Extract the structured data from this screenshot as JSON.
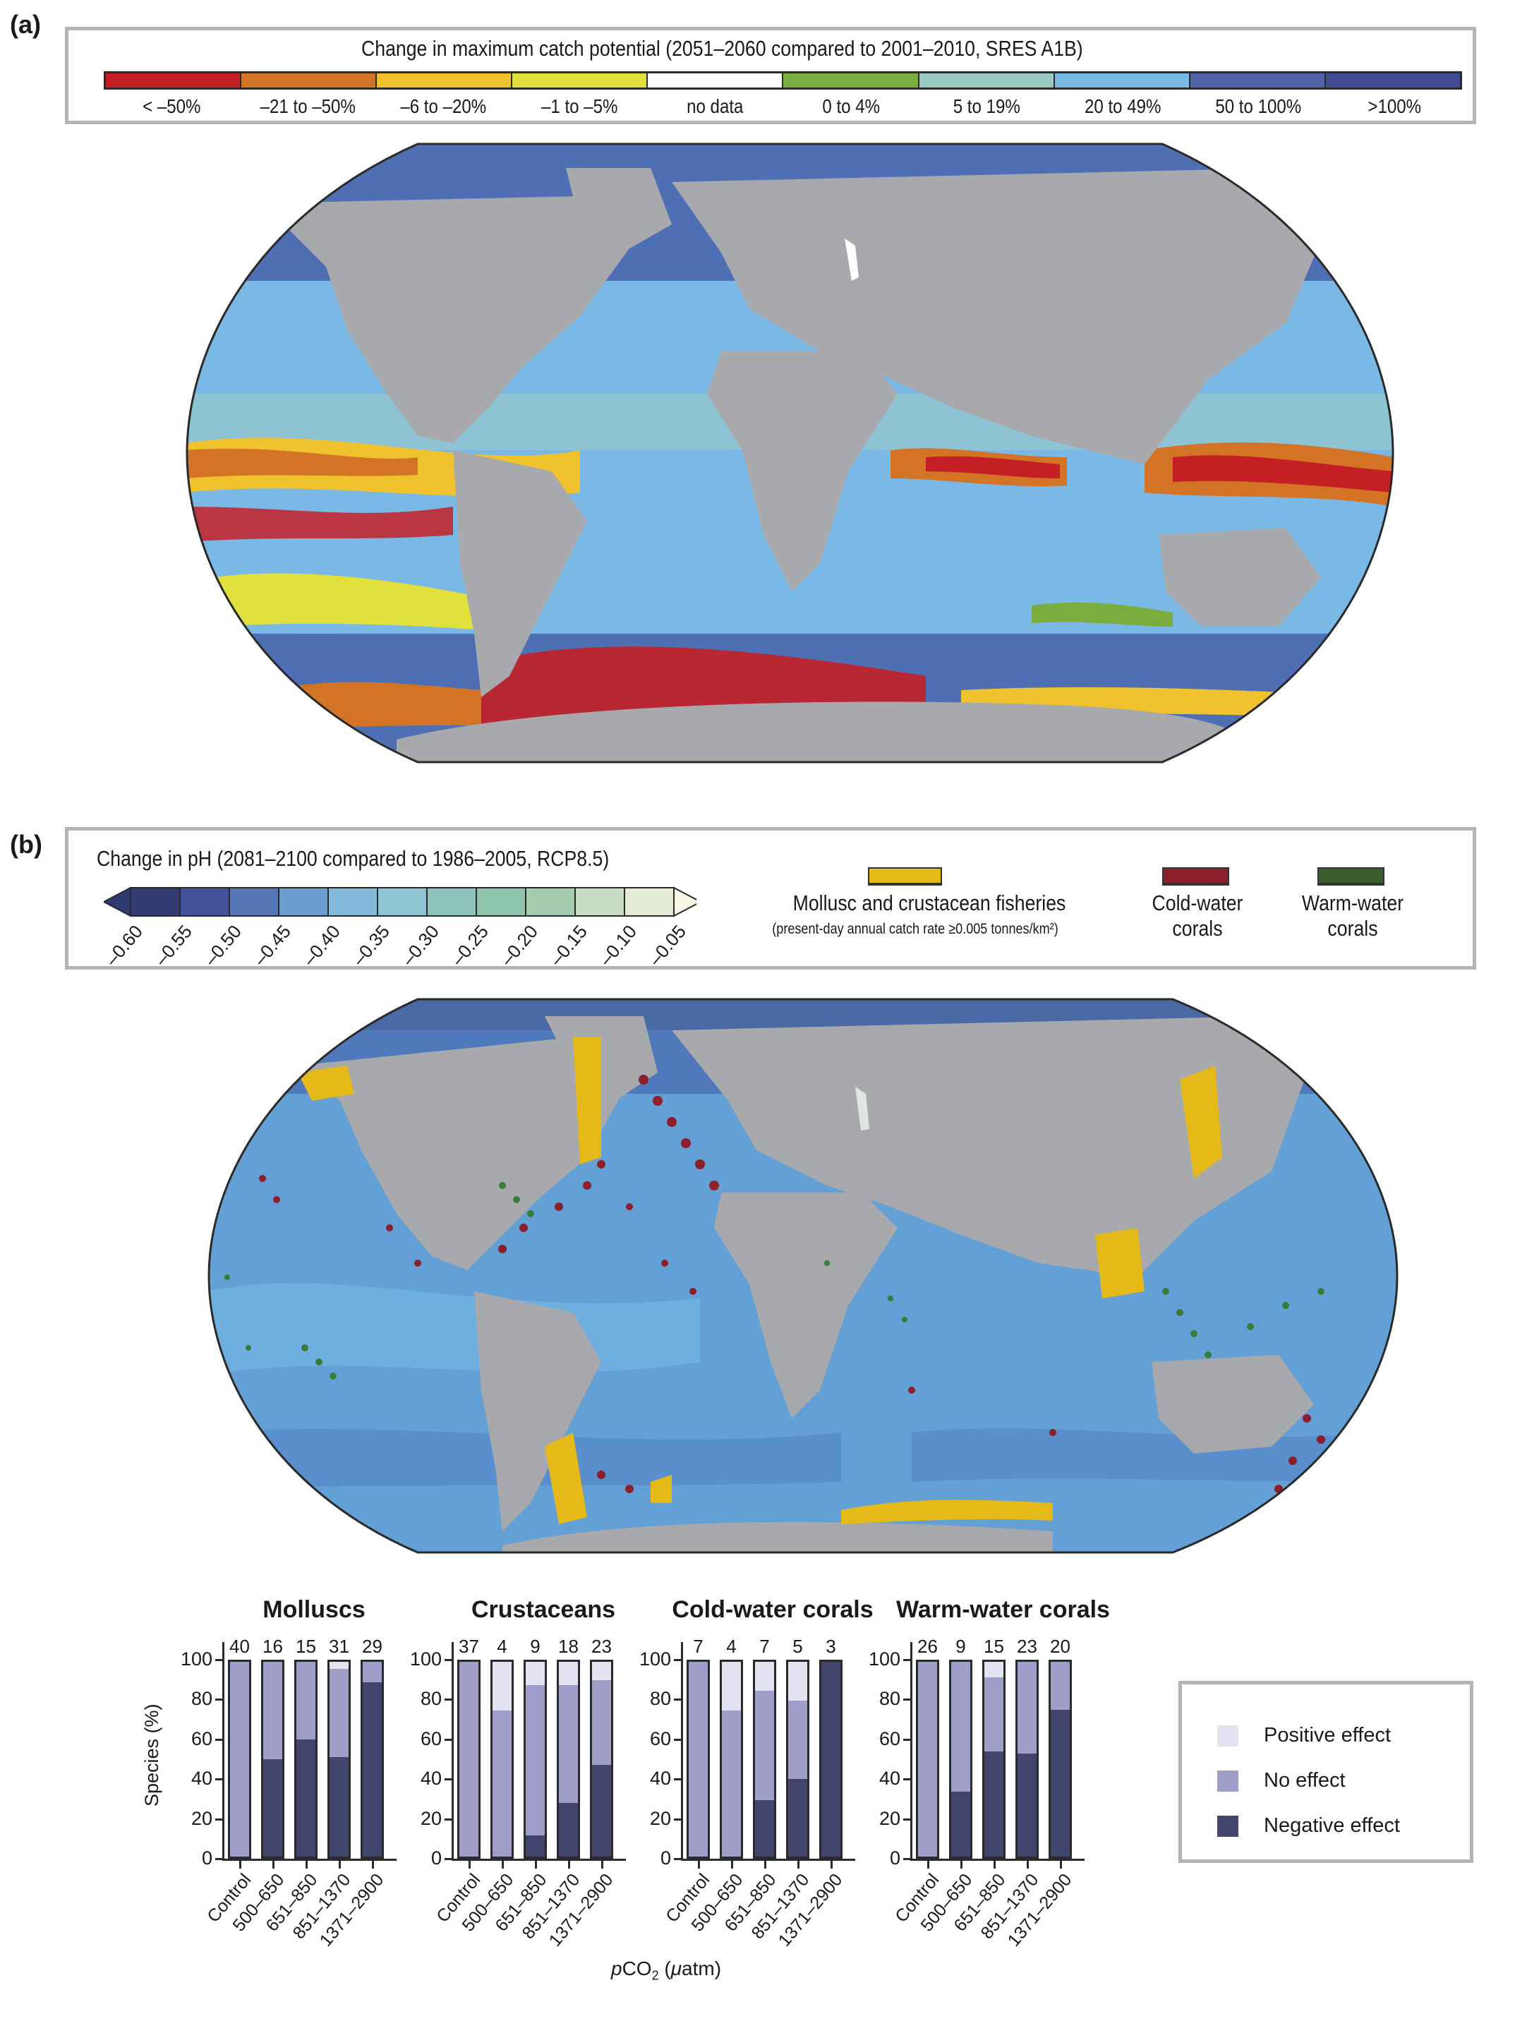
{
  "panel_a": {
    "label": "(a)",
    "legend_title": "Change in maximum catch potential (2051–2060 compared to 2001–2010, SRES A1B)",
    "categories": [
      {
        "label": "< –50%",
        "color": "#c41f24"
      },
      {
        "label": "–21 to –50%",
        "color": "#d27325"
      },
      {
        "label": "–6 to –20%",
        "color": "#efc22e"
      },
      {
        "label": "–1 to –5%",
        "color": "#e1e03c"
      },
      {
        "label": "no data",
        "color": "#ffffff"
      },
      {
        "label": "0 to 4%",
        "color": "#7aac3e"
      },
      {
        "label": "5 to 19%",
        "color": "#9ac9c4"
      },
      {
        "label": "20 to 49%",
        "color": "#7ab8e6"
      },
      {
        "label": "50 to 100%",
        "color": "#5262a6"
      },
      {
        "label": ">100%",
        "color": "#414a93"
      }
    ],
    "map": {
      "land_color": "#a8a9ad",
      "ocean_base": "#4f6fb4"
    }
  },
  "panel_b": {
    "label": "(b)",
    "legend_title": "Change in pH (2081–2100 compared to 1986–2005, RCP8.5)",
    "ph_colors": [
      "#2e3a70",
      "#333d74",
      "#44519a",
      "#5577b8",
      "#6b9fcf",
      "#84bbdd",
      "#8fc5d2",
      "#8dc3bc",
      "#8ec4ab",
      "#a6ccaf",
      "#c6ddc4",
      "#e4ecd6",
      "#faf6e6"
    ],
    "ph_ticks": [
      "–0.60",
      "–0.55",
      "–0.50",
      "–0.45",
      "–0.40",
      "–0.35",
      "–0.30",
      "–0.25",
      "–0.20",
      "–0.15",
      "–0.10",
      "–0.05"
    ],
    "swatches": [
      {
        "label": "Mollusc and crustacean fisheries",
        "sublabel": "(present-day annual catch rate ≥0.005 tonnes/km²)",
        "color": "#e5b917"
      },
      {
        "label_line1": "Cold-water",
        "label_line2": "corals",
        "color": "#8b1f2b"
      },
      {
        "label_line1": "Warm-water",
        "label_line2": "corals",
        "color": "#3a5e2e"
      }
    ],
    "map": {
      "land_color": "#a8a9ad",
      "ocean_base": "#62a0d6"
    }
  },
  "chart_data": {
    "type": "bar",
    "stacked": true,
    "xlabel": "pCO2 (μatm)",
    "ylabel": "Species (%)",
    "ylim": [
      0,
      100
    ],
    "yticks": [
      "0",
      "20",
      "40",
      "60",
      "80",
      "100"
    ],
    "categories": [
      "Control",
      "500–650",
      "651–850",
      "851–1370",
      "1371–2900"
    ],
    "legend": [
      {
        "name": "Positive effect",
        "color": "#e4e3f2"
      },
      {
        "name": "No effect",
        "color": "#9f9ecb"
      },
      {
        "name": "Negative effect",
        "color": "#43466c"
      }
    ],
    "panels": [
      {
        "title": "Molluscs",
        "n": [
          "40",
          "16",
          "15",
          "31",
          "29"
        ],
        "series": [
          {
            "name": "Negative effect",
            "values": [
              0,
              50,
              60,
              51,
              89.5
            ]
          },
          {
            "name": "No effect",
            "values": [
              100,
              50,
              40,
              45.5,
              10.5
            ]
          },
          {
            "name": "Positive effect",
            "values": [
              0,
              0,
              0,
              3.5,
              0
            ]
          }
        ]
      },
      {
        "title": "Crustaceans",
        "n": [
          "37",
          "4",
          "9",
          "18",
          "23"
        ],
        "series": [
          {
            "name": "Negative effect",
            "values": [
              0,
              0,
              11,
              27.5,
              47
            ]
          },
          {
            "name": "No effect",
            "values": [
              100,
              75,
              77,
              60.5,
              43.5
            ]
          },
          {
            "name": "Positive effect",
            "values": [
              0,
              25,
              12,
              12,
              9.5
            ]
          }
        ]
      },
      {
        "title": "Cold-water corals",
        "n": [
          "7",
          "4",
          "7",
          "5",
          "3"
        ],
        "series": [
          {
            "name": "Negative effect",
            "values": [
              0,
              0,
              29,
              40,
              100
            ]
          },
          {
            "name": "No effect",
            "values": [
              100,
              75,
              56,
              40,
              0
            ]
          },
          {
            "name": "Positive effect",
            "values": [
              0,
              25,
              15,
              20,
              0
            ]
          }
        ]
      },
      {
        "title": "Warm-water corals",
        "n": [
          "26",
          "9",
          "15",
          "23",
          "20"
        ],
        "series": [
          {
            "name": "Negative effect",
            "values": [
              0,
              33.5,
              54,
              53,
              75.5
            ]
          },
          {
            "name": "No effect",
            "values": [
              100,
              66.5,
              38,
              47,
              24.5
            ]
          },
          {
            "name": "Positive effect",
            "values": [
              0,
              0,
              8,
              0,
              0
            ]
          }
        ]
      }
    ]
  }
}
